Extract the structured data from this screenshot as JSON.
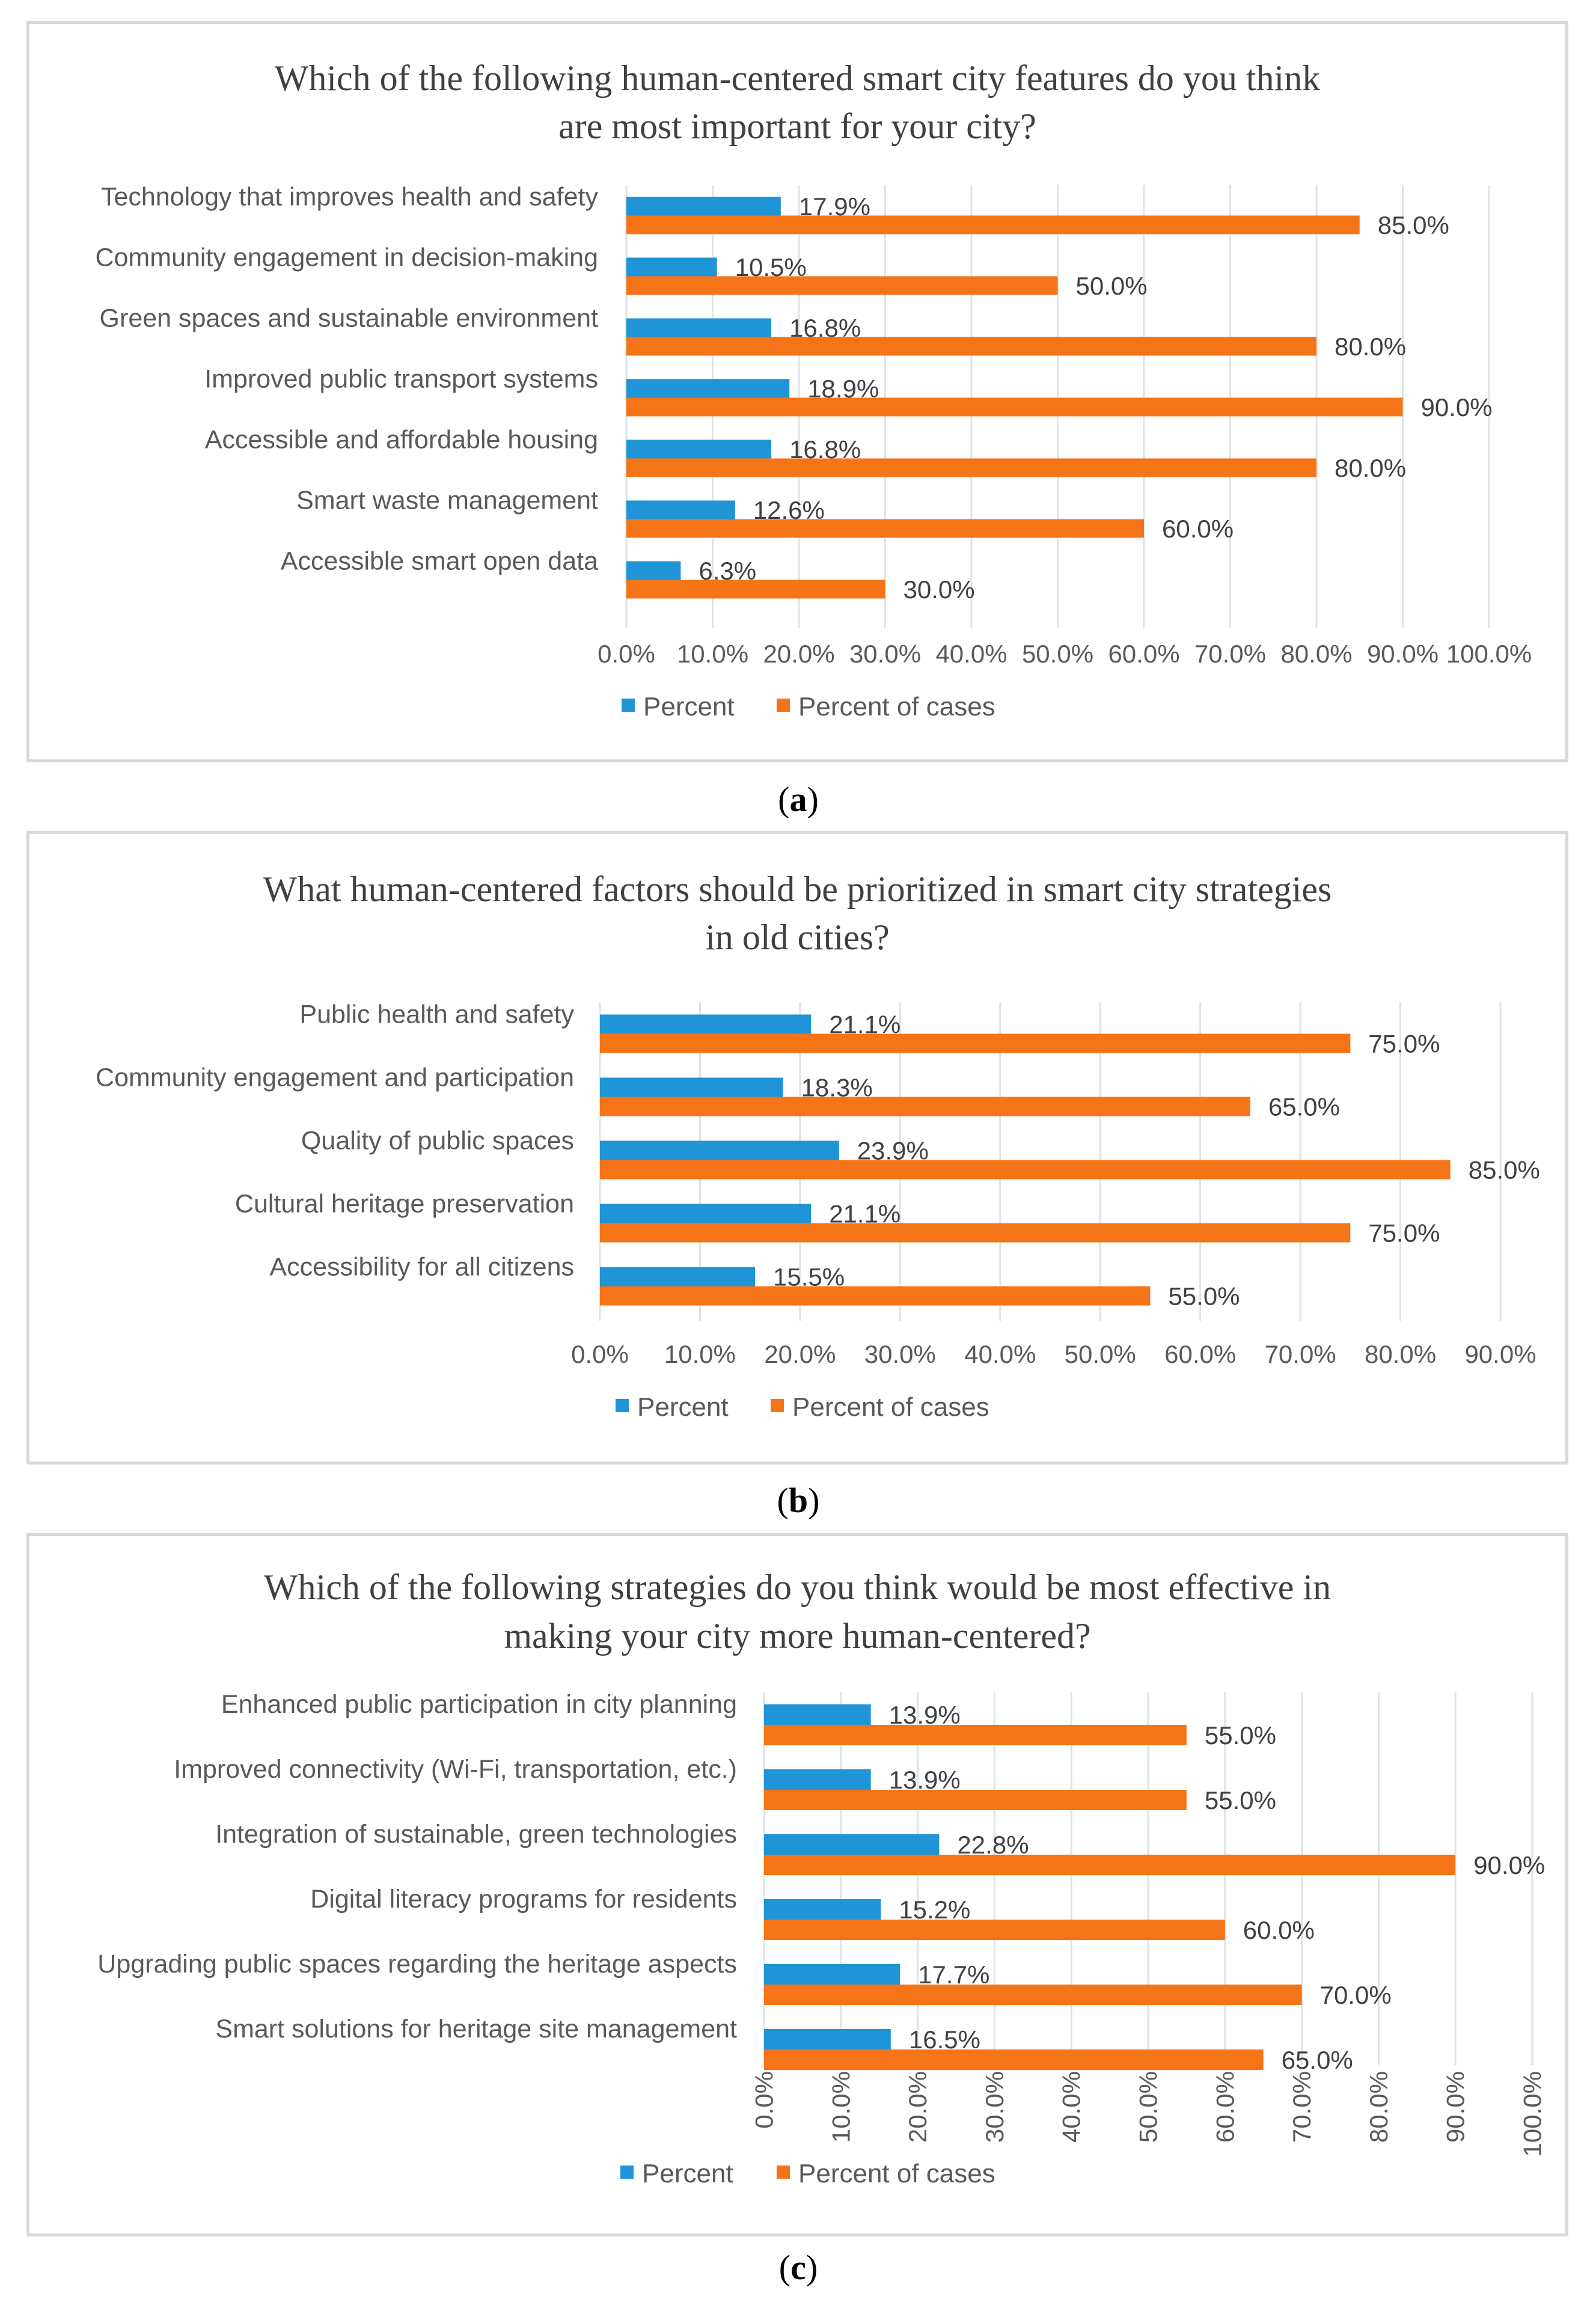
{
  "captions": {
    "a": "a",
    "b": "b",
    "c": "c"
  },
  "colors": {
    "percent": "#1f94d6",
    "percent_of_cases": "#f57417",
    "grid": "#dde3e8",
    "label": "#595959",
    "value_label": "#404040",
    "title": "#404040"
  },
  "chart_data": [
    {
      "id": "a",
      "type": "bar",
      "orientation": "horizontal",
      "title": [
        "Which of the following human-centered smart city features do you think",
        "are most important for your city?"
      ],
      "categories": [
        "Technology that improves health and safety",
        "Community engagement in decision-making",
        "Green spaces and sustainable environment",
        "Improved public transport systems",
        "Accessible and affordable housing",
        "Smart waste management",
        "Accessible smart open data"
      ],
      "series": [
        {
          "name": "Percent",
          "values": [
            17.9,
            10.5,
            16.8,
            18.9,
            16.8,
            12.6,
            6.3
          ],
          "labels": [
            "17.9%",
            "10.5%",
            "16.8%",
            "18.9%",
            "16.8%",
            "12.6%",
            "6.3%"
          ]
        },
        {
          "name": "Percent of cases",
          "values": [
            85.0,
            50.0,
            80.0,
            90.0,
            80.0,
            60.0,
            30.0
          ],
          "labels": [
            "85.0%",
            "50.0%",
            "80.0%",
            "90.0%",
            "80.0%",
            "60.0%",
            "30.0%"
          ]
        }
      ],
      "xlim": [
        0,
        100
      ],
      "ticks": [
        "0.0%",
        "10.0%",
        "20.0%",
        "30.0%",
        "40.0%",
        "50.0%",
        "60.0%",
        "70.0%",
        "80.0%",
        "90.0%",
        "100.0%"
      ],
      "tick_rotation": "horizontal",
      "grid": true,
      "legend": "bottom"
    },
    {
      "id": "b",
      "type": "bar",
      "orientation": "horizontal",
      "title": [
        "What human-centered factors should be prioritized in smart city strategies",
        "in old cities?"
      ],
      "categories": [
        "Public health and safety",
        "Community engagement and participation",
        "Quality of public spaces",
        "Cultural heritage preservation",
        "Accessibility for all citizens"
      ],
      "series": [
        {
          "name": "Percent",
          "values": [
            21.1,
            18.3,
            23.9,
            21.1,
            15.5
          ],
          "labels": [
            "21.1%",
            "18.3%",
            "23.9%",
            "21.1%",
            "15.5%"
          ]
        },
        {
          "name": "Percent of cases",
          "values": [
            75.0,
            65.0,
            85.0,
            75.0,
            55.0
          ],
          "labels": [
            "75.0%",
            "65.0%",
            "85.0%",
            "75.0%",
            "55.0%"
          ]
        }
      ],
      "xlim": [
        0,
        90
      ],
      "ticks": [
        "0.0%",
        "10.0%",
        "20.0%",
        "30.0%",
        "40.0%",
        "50.0%",
        "60.0%",
        "70.0%",
        "80.0%",
        "90.0%"
      ],
      "tick_rotation": "horizontal",
      "grid": true,
      "legend": "bottom"
    },
    {
      "id": "c",
      "type": "bar",
      "orientation": "horizontal",
      "title": [
        "Which of the following strategies do you think would be most effective in",
        "making your city more human-centered?"
      ],
      "categories": [
        "Enhanced public participation in city planning",
        "Improved connectivity (Wi-Fi, transportation, etc.)",
        "Integration of sustainable, green technologies",
        "Digital literacy programs for residents",
        "Upgrading public spaces regarding the heritage aspects",
        "Smart solutions for heritage site management"
      ],
      "series": [
        {
          "name": "Percent",
          "values": [
            13.9,
            13.9,
            22.8,
            15.2,
            17.7,
            16.5
          ],
          "labels": [
            "13.9%",
            "13.9%",
            "22.8%",
            "15.2%",
            "17.7%",
            "16.5%"
          ]
        },
        {
          "name": "Percent of cases",
          "values": [
            55.0,
            55.0,
            90.0,
            60.0,
            70.0,
            65.0
          ],
          "labels": [
            "55.0%",
            "55.0%",
            "90.0%",
            "60.0%",
            "70.0%",
            "65.0%"
          ]
        }
      ],
      "xlim": [
        0,
        100
      ],
      "ticks": [
        "0.0%",
        "10.0%",
        "20.0%",
        "30.0%",
        "40.0%",
        "50.0%",
        "60.0%",
        "70.0%",
        "80.0%",
        "90.0%",
        "100.0%"
      ],
      "tick_rotation": "vertical",
      "grid": true,
      "legend": "bottom"
    }
  ]
}
